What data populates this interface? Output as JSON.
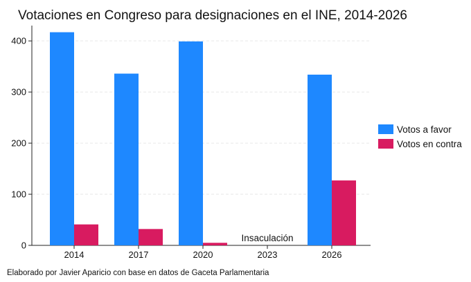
{
  "chart_data": {
    "type": "bar",
    "title": "Votaciones en Congreso para designaciones en el INE, 2014-2026",
    "xlabel": "",
    "ylabel": "",
    "categories": [
      "2014",
      "2017",
      "2020",
      "2023",
      "2026"
    ],
    "series": [
      {
        "name": "Votos a favor",
        "values": [
          417,
          336,
          399,
          null,
          334
        ],
        "color": "#1E88FF"
      },
      {
        "name": "Votos en contra",
        "values": [
          41,
          32,
          5,
          null,
          127
        ],
        "color": "#D81B60"
      }
    ],
    "yticks": [
      0,
      100,
      200,
      300,
      400
    ],
    "ylim": [
      0,
      430
    ],
    "grid": true,
    "legend_position": "right",
    "annotations": [
      {
        "category": "2023",
        "text": "Insaculación"
      }
    ],
    "caption": "Elaborado por Javier Aparicio con base en datos de Gaceta Parlamentaria"
  }
}
